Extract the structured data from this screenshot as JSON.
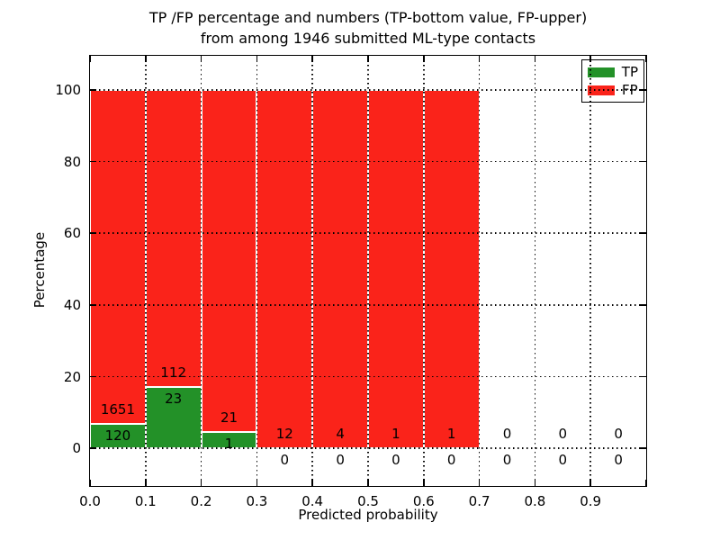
{
  "chart_data": {
    "type": "bar",
    "stacked": true,
    "normalized_to_percent": true,
    "title_line1": "TP /FP percentage and numbers (TP-bottom value, FP-upper)",
    "title_line2": "from among 1946 submitted ML-type contacts",
    "xlabel": "Predicted probability",
    "ylabel": "Percentage",
    "total_contacts": 1946,
    "bin_width": 0.1,
    "bin_starts": [
      0.0,
      0.1,
      0.2,
      0.3,
      0.4,
      0.5,
      0.6,
      0.7,
      0.8,
      0.9
    ],
    "x_tick_labels": [
      "0.0",
      "0.1",
      "0.2",
      "0.3",
      "0.4",
      "0.5",
      "0.6",
      "0.7",
      "0.8",
      "0.9"
    ],
    "y_tick_values": [
      0,
      20,
      40,
      60,
      80,
      100
    ],
    "y_tick_labels": [
      "0",
      "20",
      "40",
      "60",
      "80",
      "100"
    ],
    "xlim": [
      0.0,
      1.0
    ],
    "ylim": [
      -10.5,
      109.5
    ],
    "grid_style": "dotted",
    "legend": [
      {
        "label": "TP",
        "color": "#239128"
      },
      {
        "label": "FP",
        "color": "#fa231a"
      }
    ],
    "series": [
      {
        "name": "TP",
        "counts": [
          120,
          23,
          1,
          0,
          0,
          0,
          0,
          0,
          0,
          0
        ]
      },
      {
        "name": "FP",
        "counts": [
          1651,
          112,
          21,
          12,
          4,
          1,
          1,
          0,
          0,
          0
        ]
      }
    ]
  }
}
